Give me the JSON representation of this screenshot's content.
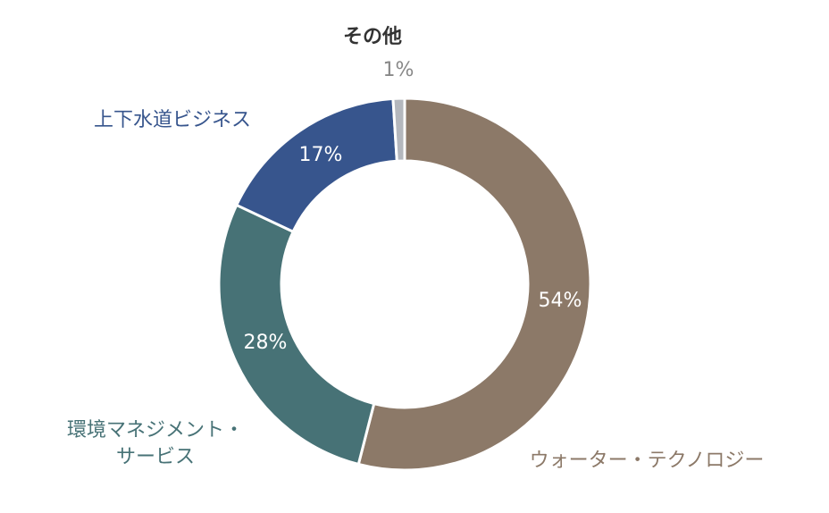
{
  "chart_data": {
    "type": "donut",
    "start_angle_deg": 0,
    "direction": "clockwise",
    "slices": [
      {
        "label": "ウォーター・テクノロジー",
        "value": 54,
        "display": "54%",
        "color": "#8c7968",
        "label_color": "#8c7968"
      },
      {
        "label": "環境マネジメント・サービス",
        "value": 28,
        "display": "28%",
        "color": "#477276",
        "label_color": "#477276",
        "label_lines": [
          "環境マネジメント・",
          "サービス"
        ]
      },
      {
        "label": "上下水道ビジネス",
        "value": 17,
        "display": "17%",
        "color": "#37558d",
        "label_color": "#37558d"
      },
      {
        "label": "その他",
        "value": 1,
        "display": "1%",
        "color": "#b4b7bd",
        "label_color": "#333333"
      }
    ]
  }
}
